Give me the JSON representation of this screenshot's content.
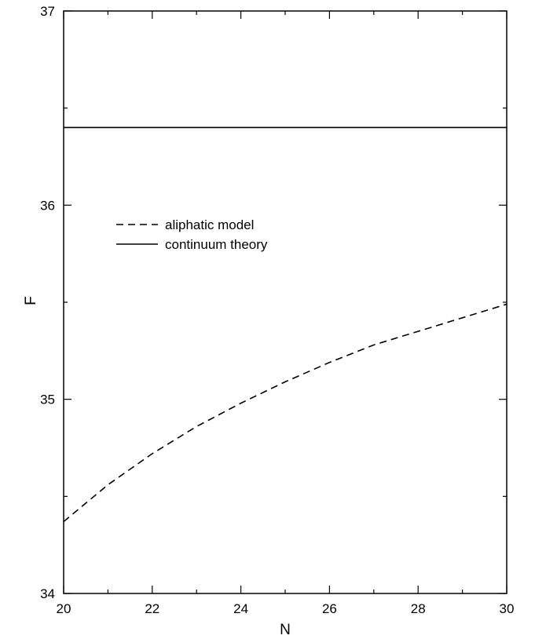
{
  "chart_data": {
    "type": "line",
    "title": "",
    "xlabel": "N",
    "ylabel": "F",
    "xlim": [
      20,
      30
    ],
    "ylim": [
      34,
      37
    ],
    "x_major_ticks": [
      "20",
      "22",
      "24",
      "26",
      "28",
      "30"
    ],
    "y_major_ticks": [
      "34",
      "35",
      "36",
      "37"
    ],
    "grid": false,
    "legend_position": "upper-left, inside plot",
    "series": [
      {
        "name": "aliphatic model",
        "line_style": "dashed",
        "color": "#000000",
        "x": [
          20,
          21,
          22,
          23,
          24,
          25,
          26,
          27,
          28,
          29,
          30
        ],
        "y": [
          34.37,
          34.56,
          34.72,
          34.86,
          34.98,
          35.09,
          35.19,
          35.28,
          35.35,
          35.42,
          35.49
        ]
      },
      {
        "name": "continuum theory",
        "line_style": "solid",
        "color": "#000000",
        "x": [
          20,
          30
        ],
        "y": [
          36.4,
          36.4
        ]
      }
    ]
  }
}
